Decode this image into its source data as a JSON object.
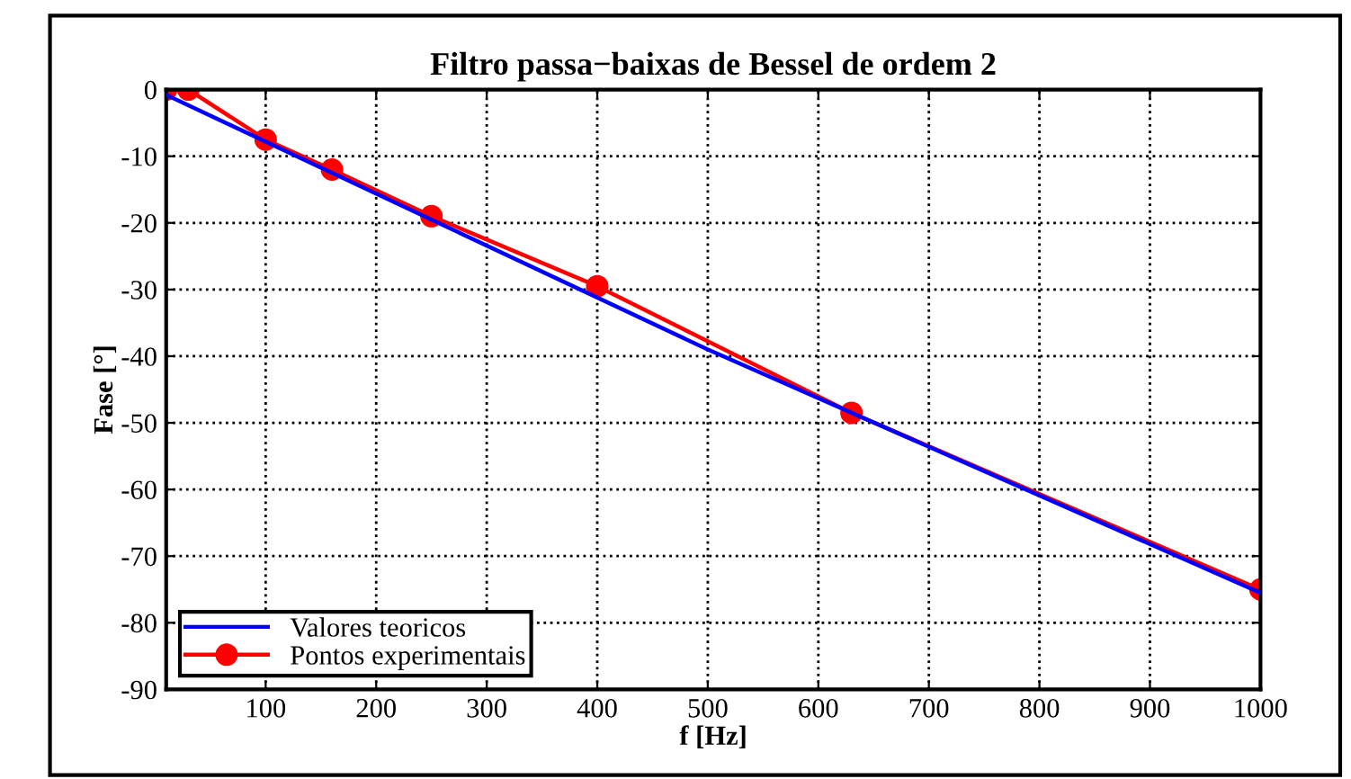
{
  "chart_data": {
    "type": "line",
    "title": "Filtro passa−baixas de Bessel de ordem 2",
    "xlabel": "f [Hz]",
    "ylabel": "Fase [°]",
    "series": [
      {
        "name": "Valores teoricos",
        "color": "#0000ff",
        "marker": "none",
        "x": [
          10,
          500,
          1000
        ],
        "values": [
          -0.8,
          -39,
          -75.5
        ]
      },
      {
        "name": "Pontos experimentais",
        "color": "#ff0000",
        "marker": "circle",
        "x": [
          10,
          30,
          100,
          160,
          250,
          400,
          630,
          1000
        ],
        "values": [
          0,
          0,
          -7.5,
          -12,
          -19,
          -29.5,
          -48.5,
          -75
        ]
      }
    ],
    "xlim": [
      10,
      1000
    ],
    "xticks": [
      100,
      200,
      300,
      400,
      500,
      600,
      700,
      800,
      900,
      1000
    ],
    "ylim": [
      -90,
      0
    ],
    "yticks": [
      -90,
      -80,
      -70,
      -60,
      -50,
      -40,
      -30,
      -20,
      -10,
      0
    ],
    "grid": true,
    "legend": "bottom left"
  }
}
